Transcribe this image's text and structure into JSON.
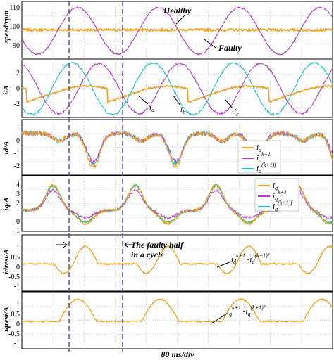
{
  "figure": {
    "x_axis_label": "80 ms/div",
    "faulty_half_note": [
      "The faulty half",
      "in a cycle"
    ]
  },
  "colors": {
    "orange": "#f0a020",
    "purple": "#b040c8",
    "cyan": "#20c0c8",
    "green": "#40b060",
    "blue": "#2060c0",
    "grid": "#b0b0b0",
    "marker": "#5a40a0"
  },
  "chart_data": [
    {
      "type": "line",
      "ylabel": "speed/rpm",
      "ylim": [
        86,
        114
      ],
      "yticks": [
        "110",
        "100",
        "90"
      ],
      "annotations": [
        "Healthy",
        "Faulty"
      ],
      "series": [
        {
          "name": "Healthy",
          "color": "orange",
          "y_approx": 100
        },
        {
          "name": "Faulty",
          "color": "purple",
          "peak_approx": 111,
          "trough_approx": 88,
          "period_div": 2.6
        }
      ]
    },
    {
      "type": "line",
      "ylabel": "i/A",
      "ylim": [
        -3,
        3
      ],
      "yticks": [
        "2",
        "0",
        "-2"
      ],
      "annotations": [
        "ia",
        "ib",
        "ic"
      ],
      "series": [
        {
          "name": "ia",
          "color": "orange",
          "peak_approx": 0.3,
          "trough_approx": -1.4
        },
        {
          "name": "ib",
          "color": "purple",
          "amplitude_approx": 2.7
        },
        {
          "name": "ic",
          "color": "cyan",
          "amplitude_approx": 2.8
        }
      ]
    },
    {
      "type": "line",
      "ylabel": "id/A",
      "ylim": [
        -2.4,
        1.6
      ],
      "yticks": [
        "1",
        "0",
        "-1",
        "-2"
      ],
      "legend": [
        "id",
        "id k+1",
        "id (k+1)f"
      ],
      "series": [
        {
          "name": "id",
          "color": "orange",
          "baseline_approx": 0.6,
          "dip_approx": -1.8
        },
        {
          "name": "id k+1",
          "color": "purple",
          "baseline_approx": 0.6,
          "dip_approx": -1.5
        },
        {
          "name": "id (k+1)f",
          "color": "cyan",
          "baseline_approx": 0.6,
          "dip_approx": -1.6
        }
      ]
    },
    {
      "type": "line",
      "ylabel": "iq/A",
      "ylim": [
        -1.4,
        5.2
      ],
      "yticks": [
        "4",
        "3",
        "2",
        "1",
        "0",
        "-1"
      ],
      "legend": [
        "iq",
        "iq k+1",
        "iq (k+1)f"
      ],
      "series": [
        {
          "name": "iq",
          "color": "orange",
          "baseline_approx": 1.1,
          "peak_approx": 4.1,
          "trough_approx": -0.5
        },
        {
          "name": "iq k+1",
          "color": "purple",
          "baseline_approx": 1.1,
          "peak_approx": 3.6,
          "trough_approx": 0.1
        },
        {
          "name": "iq (k+1)f",
          "color": "cyan",
          "baseline_approx": 1.1,
          "peak_approx": 4.2,
          "trough_approx": -0.4
        }
      ]
    },
    {
      "type": "line",
      "ylabel": "idresi/A",
      "ylim": [
        -1.3,
        1.4
      ],
      "yticks": [
        "1",
        "0.5",
        "0",
        "-0.5",
        "-1"
      ],
      "annotations": [
        "id k+1 - id (k+1)f"
      ],
      "series": [
        {
          "name": "id k+1 - id (k+1)f",
          "color": "orange",
          "baseline_approx": 0,
          "peak_approx": 0.85,
          "trough_approx": -0.45
        }
      ]
    },
    {
      "type": "line",
      "ylabel": "iqresi/A",
      "ylim": [
        -1.3,
        1.4
      ],
      "yticks": [
        "1",
        "0.5",
        "0",
        "-0.5",
        "-1"
      ],
      "annotations": [
        "iq k+1 - iq (k+1)f"
      ],
      "series": [
        {
          "name": "iq k+1 - iq (k+1)f",
          "color": "orange",
          "baseline_approx": 0,
          "peak_approx": 1.05
        }
      ]
    }
  ]
}
